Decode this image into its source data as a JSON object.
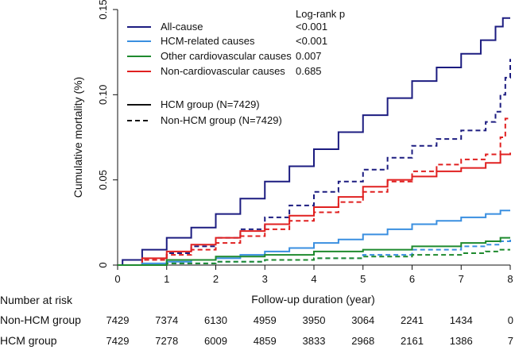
{
  "chart_data": {
    "type": "line",
    "subtype": "cumulative incidence (Kaplan-Meier)",
    "title": "",
    "xlabel": "Follow-up duration (year)",
    "ylabel": "Cumulative mortality (%)",
    "xlim": [
      0,
      8
    ],
    "ylim": [
      0,
      0.15
    ],
    "xticks": [
      "0",
      "1",
      "2",
      "3",
      "4",
      "5",
      "6",
      "7",
      "8"
    ],
    "yticks": [
      "0",
      "0.05",
      "0.10",
      "0.15"
    ],
    "grid": false,
    "legend_position": "top-left",
    "logrank_header": "Log-rank p",
    "causes": [
      {
        "name": "All-cause",
        "color": "#1c1c80",
        "p": "<0.001"
      },
      {
        "name": "HCM-related causes",
        "color": "#3a8fe0",
        "p": "<0.001"
      },
      {
        "name": "Other cardiovascular causes",
        "color": "#1e8a2e",
        "p": "0.007"
      },
      {
        "name": "Non-cardiovascular causes",
        "color": "#e02020",
        "p": "0.685"
      }
    ],
    "groups": [
      {
        "name": "HCM group (N=7429)",
        "style": "solid"
      },
      {
        "name": "Non-HCM group (N=7429)",
        "style": "dashed"
      }
    ],
    "series": [
      {
        "name": "All-cause — HCM group",
        "cause": 0,
        "style": "solid",
        "x": [
          0,
          0.1,
          0.5,
          1,
          1.5,
          2,
          2.5,
          3,
          3.5,
          4,
          4.5,
          5,
          5.5,
          6,
          6.5,
          7,
          7.4,
          7.7,
          7.85,
          8
        ],
        "y": [
          0,
          0.003,
          0.009,
          0.016,
          0.022,
          0.03,
          0.039,
          0.049,
          0.058,
          0.068,
          0.078,
          0.088,
          0.098,
          0.108,
          0.116,
          0.124,
          0.132,
          0.14,
          0.145,
          0.145
        ]
      },
      {
        "name": "All-cause — Non-HCM group",
        "cause": 0,
        "style": "dashed",
        "x": [
          0,
          0.5,
          1,
          1.5,
          2,
          2.5,
          3,
          3.5,
          4,
          4.5,
          5,
          5.5,
          6,
          6.5,
          7,
          7.5,
          7.7,
          7.8,
          7.9,
          8
        ],
        "y": [
          0,
          0.003,
          0.007,
          0.011,
          0.016,
          0.021,
          0.028,
          0.035,
          0.043,
          0.049,
          0.056,
          0.063,
          0.07,
          0.074,
          0.079,
          0.084,
          0.09,
          0.1,
          0.11,
          0.121
        ]
      },
      {
        "name": "Non-cardiovascular — HCM group",
        "cause": 3,
        "style": "solid",
        "x": [
          0,
          0.5,
          1,
          1.5,
          2,
          2.5,
          3,
          3.5,
          4,
          4.5,
          5,
          5.5,
          6,
          6.5,
          7,
          7.5,
          7.8,
          8
        ],
        "y": [
          0,
          0.004,
          0.008,
          0.012,
          0.016,
          0.02,
          0.024,
          0.029,
          0.034,
          0.04,
          0.046,
          0.05,
          0.052,
          0.055,
          0.057,
          0.06,
          0.065,
          0.066
        ]
      },
      {
        "name": "Non-cardiovascular — Non-HCM group",
        "cause": 3,
        "style": "dashed",
        "x": [
          0,
          0.5,
          1,
          1.5,
          2,
          2.5,
          3,
          3.5,
          4,
          4.5,
          5,
          5.5,
          6,
          6.5,
          7,
          7.5,
          7.8,
          7.9,
          8
        ],
        "y": [
          0,
          0.003,
          0.006,
          0.009,
          0.013,
          0.017,
          0.021,
          0.026,
          0.031,
          0.037,
          0.043,
          0.049,
          0.055,
          0.059,
          0.062,
          0.065,
          0.075,
          0.086,
          0.086
        ]
      },
      {
        "name": "HCM-related — HCM group",
        "cause": 1,
        "style": "solid",
        "x": [
          0,
          0.5,
          1,
          1.5,
          2,
          2.5,
          3,
          3.5,
          4,
          4.5,
          5,
          5.5,
          6,
          6.5,
          7,
          7.5,
          7.8,
          8
        ],
        "y": [
          0,
          0.001,
          0.002,
          0.003,
          0.004,
          0.006,
          0.008,
          0.01,
          0.013,
          0.015,
          0.018,
          0.021,
          0.024,
          0.026,
          0.028,
          0.03,
          0.032,
          0.032
        ]
      },
      {
        "name": "HCM-related — Non-HCM group",
        "cause": 1,
        "style": "dashed",
        "x": [
          0,
          1,
          2,
          3,
          4,
          5,
          6,
          7,
          7.5,
          7.8,
          8
        ],
        "y": [
          0,
          0.001,
          0.002,
          0.003,
          0.004,
          0.006,
          0.009,
          0.011,
          0.012,
          0.014,
          0.015
        ]
      },
      {
        "name": "Other cardiovascular — HCM group",
        "cause": 2,
        "style": "solid",
        "x": [
          0,
          1,
          2,
          3,
          4,
          5,
          6,
          7,
          7.5,
          7.8,
          8
        ],
        "y": [
          0,
          0.003,
          0.005,
          0.006,
          0.008,
          0.009,
          0.011,
          0.013,
          0.014,
          0.016,
          0.016
        ]
      },
      {
        "name": "Other cardiovascular — Non-HCM group",
        "cause": 2,
        "style": "dashed",
        "x": [
          0,
          1,
          2,
          3,
          4,
          5,
          6,
          7,
          7.5,
          7.8,
          8
        ],
        "y": [
          0,
          0.001,
          0.002,
          0.003,
          0.004,
          0.005,
          0.006,
          0.007,
          0.008,
          0.009,
          0.009
        ]
      }
    ],
    "risk_table": {
      "title": "Number at risk",
      "times": [
        0,
        1,
        2,
        3,
        4,
        5,
        6,
        7,
        8
      ],
      "rows": [
        {
          "label": "Non-HCM group",
          "values": [
            "7429",
            "7374",
            "6130",
            "4959",
            "3950",
            "3064",
            "2241",
            "1434",
            "0"
          ]
        },
        {
          "label": "HCM group",
          "values": [
            "7429",
            "7278",
            "6009",
            "4859",
            "3833",
            "2968",
            "2161",
            "1386",
            "7"
          ]
        }
      ]
    }
  }
}
